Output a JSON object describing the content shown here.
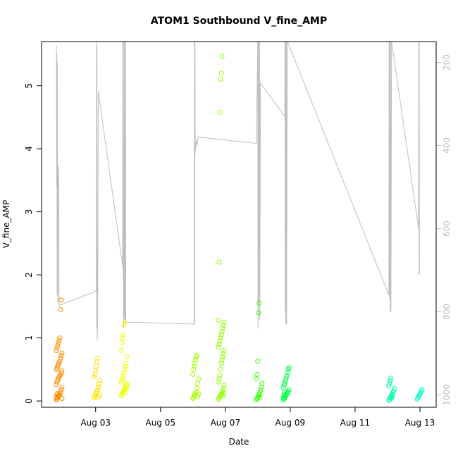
{
  "chart_data": {
    "type": "scatter",
    "title": "ATOM1 Southbound V_fine_AMP",
    "xlabel": "Date",
    "ylabel": "V_fine_AMP",
    "xlim": [
      "2024-08-01T08:00",
      "2024-08-13T12:00"
    ],
    "ylim": [
      -0.1,
      5.7
    ],
    "x_ticks": [
      {
        "date": "2024-08-03",
        "label": "Aug 03"
      },
      {
        "date": "2024-08-05",
        "label": "Aug 05"
      },
      {
        "date": "2024-08-07",
        "label": "Aug 07"
      },
      {
        "date": "2024-08-09",
        "label": "Aug 09"
      },
      {
        "date": "2024-08-11",
        "label": "Aug 11"
      },
      {
        "date": "2024-08-13",
        "label": "Aug 13"
      }
    ],
    "y_ticks": [
      0,
      1,
      2,
      3,
      4,
      5
    ],
    "y2_ticks": [
      200,
      400,
      600,
      800,
      1000
    ],
    "y2lim": [
      1030,
      150
    ],
    "y2_color": "#bebebe",
    "grid": false,
    "point_series": [
      {
        "x": "2024-08-01T21:00",
        "color": "#ff8c00",
        "y": [
          0.02,
          0.03,
          0.05,
          0.07,
          0.09,
          0.11,
          0.14,
          0.18,
          0.22,
          0.26,
          0.3,
          0.33,
          0.36,
          0.38,
          0.4,
          0.42,
          0.45,
          0.48,
          0.5,
          0.52,
          0.55,
          0.58,
          0.6,
          0.63,
          0.68,
          0.72,
          0.76,
          0.8,
          0.84,
          0.88,
          0.92,
          0.96,
          1.0,
          1.45,
          1.6,
          0.04,
          0.06,
          0.1,
          0.12,
          0.08
        ]
      },
      {
        "x": "2024-08-03T01:00",
        "color": "#ffe000",
        "y": [
          0.05,
          0.07,
          0.09,
          0.12,
          0.15,
          0.18,
          0.22,
          0.27,
          0.32,
          0.38,
          0.42,
          0.48,
          0.55,
          0.62,
          0.68,
          0.06,
          0.1
        ]
      },
      {
        "x": "2024-08-03T21:00",
        "color": "#eeff00",
        "y": [
          0.08,
          0.1,
          0.12,
          0.15,
          0.18,
          0.2,
          0.22,
          0.25,
          0.28,
          0.3,
          0.33,
          0.36,
          0.4,
          0.45,
          0.5,
          0.55,
          0.6,
          0.7,
          0.8,
          0.92,
          1.0,
          1.05,
          1.2,
          1.25,
          0.14,
          0.19,
          0.24
        ]
      },
      {
        "x": "2024-08-06T02:00",
        "color": "#a6ff00",
        "y": [
          0.04,
          0.06,
          0.08,
          0.1,
          0.12,
          0.15,
          0.2,
          0.28,
          0.35,
          0.42,
          0.5,
          0.55,
          0.6,
          0.65,
          0.7,
          0.72,
          0.07,
          0.11
        ]
      },
      {
        "x": "2024-08-06T21:00",
        "color": "#8cff00",
        "y": [
          0.03,
          0.05,
          0.07,
          0.09,
          0.11,
          0.13,
          0.16,
          0.2,
          0.25,
          0.3,
          0.35,
          0.4,
          0.5,
          0.6,
          0.65,
          0.7,
          0.75,
          0.8,
          0.85,
          0.9,
          0.95,
          1.0,
          1.05,
          1.1,
          1.15,
          1.2,
          1.25,
          1.28,
          2.2,
          4.58,
          5.1,
          5.2,
          5.47,
          0.08,
          0.12
        ]
      },
      {
        "x": "2024-08-08T01:00",
        "color": "#33ff00",
        "y": [
          0.02,
          0.04,
          0.06,
          0.08,
          0.1,
          0.13,
          0.17,
          0.22,
          0.28,
          0.35,
          0.42,
          0.63,
          1.4,
          1.55,
          0.05
        ]
      },
      {
        "x": "2024-08-08T21:00",
        "color": "#00ff44",
        "y": [
          0.02,
          0.04,
          0.05,
          0.07,
          0.09,
          0.11,
          0.13,
          0.15,
          0.18,
          0.21,
          0.25,
          0.28,
          0.32,
          0.36,
          0.4,
          0.45,
          0.5,
          0.53,
          0.06,
          0.1,
          0.14
        ]
      },
      {
        "x": "2024-08-12T03:00",
        "color": "#00ffaa",
        "y": [
          0.01,
          0.03,
          0.05,
          0.07,
          0.09,
          0.11,
          0.13,
          0.16,
          0.2,
          0.24,
          0.28,
          0.32,
          0.36,
          0.04,
          0.08
        ]
      },
      {
        "x": "2024-08-13T00:00",
        "color": "#00ffcc",
        "y": [
          0.03,
          0.05,
          0.07,
          0.09,
          0.11,
          0.13,
          0.16,
          0.18
        ]
      }
    ],
    "secondary_line": {
      "color": "#bebebe",
      "points": [
        [
          "2024-08-01T19:00",
          160
        ],
        [
          "2024-08-01T19:10",
          500
        ],
        [
          "2024-08-01T19:20",
          180
        ],
        [
          "2024-08-01T19:30",
          760
        ],
        [
          "2024-08-01T19:40",
          200
        ],
        [
          "2024-08-01T20:00",
          780
        ],
        [
          "2024-08-01T20:20",
          480
        ],
        [
          "2024-08-01T20:40",
          450
        ],
        [
          "2024-08-01T21:00",
          785
        ],
        [
          "2024-08-03T00:30",
          750
        ],
        [
          "2024-08-03T00:40",
          150
        ],
        [
          "2024-08-03T00:50",
          840
        ],
        [
          "2024-08-03T01:00",
          160
        ],
        [
          "2024-08-03T01:10",
          870
        ],
        [
          "2024-08-03T01:30",
          830
        ],
        [
          "2024-08-03T02:00",
          270
        ],
        [
          "2024-08-03T20:00",
          690
        ],
        [
          "2024-08-03T20:10",
          150
        ],
        [
          "2024-08-03T20:20",
          720
        ],
        [
          "2024-08-03T20:30",
          150
        ],
        [
          "2024-08-03T20:40",
          840
        ],
        [
          "2024-08-03T21:00",
          820
        ],
        [
          "2024-08-03T21:10",
          150
        ],
        [
          "2024-08-03T21:20",
          810
        ],
        [
          "2024-08-03T21:30",
          390
        ],
        [
          "2024-08-03T21:40",
          820
        ],
        [
          "2024-08-03T21:50",
          150
        ],
        [
          "2024-08-03T22:00",
          820
        ],
        [
          "2024-08-03T22:10",
          150
        ],
        [
          "2024-08-03T22:20",
          825
        ],
        [
          "2024-08-06T01:00",
          830
        ],
        [
          "2024-08-06T01:10",
          150
        ],
        [
          "2024-08-06T01:20",
          830
        ],
        [
          "2024-08-06T01:30",
          150
        ],
        [
          "2024-08-06T01:40",
          420
        ],
        [
          "2024-08-06T02:30",
          385
        ],
        [
          "2024-08-06T03:00",
          400
        ],
        [
          "2024-08-06T04:00",
          380
        ],
        [
          "2024-08-07T23:00",
          395
        ],
        [
          "2024-08-08T00:00",
          150
        ],
        [
          "2024-08-08T00:10",
          840
        ],
        [
          "2024-08-08T00:20",
          150
        ],
        [
          "2024-08-08T00:30",
          810
        ],
        [
          "2024-08-08T00:40",
          150
        ],
        [
          "2024-08-08T00:50",
          780
        ],
        [
          "2024-08-08T01:00",
          250
        ],
        [
          "2024-08-08T01:10",
          650
        ],
        [
          "2024-08-08T01:20",
          150
        ],
        [
          "2024-08-08T01:30",
          820
        ],
        [
          "2024-08-08T02:00",
          250
        ],
        [
          "2024-08-08T20:00",
          330
        ],
        [
          "2024-08-08T20:10",
          150
        ],
        [
          "2024-08-08T20:20",
          800
        ],
        [
          "2024-08-08T20:30",
          150
        ],
        [
          "2024-08-08T20:40",
          830
        ],
        [
          "2024-08-08T20:50",
          150
        ],
        [
          "2024-08-08T21:00",
          830
        ],
        [
          "2024-08-08T21:10",
          150
        ],
        [
          "2024-08-08T21:20",
          830
        ],
        [
          "2024-08-08T21:40",
          340
        ],
        [
          "2024-08-08T22:00",
          150
        ],
        [
          "2024-08-12T01:00",
          760
        ],
        [
          "2024-08-12T01:10",
          150
        ],
        [
          "2024-08-12T01:30",
          770
        ],
        [
          "2024-08-12T01:40",
          150
        ],
        [
          "2024-08-12T02:00",
          800
        ],
        [
          "2024-08-12T02:10",
          150
        ],
        [
          "2024-08-12T02:30",
          800
        ],
        [
          "2024-08-12T03:00",
          150
        ],
        [
          "2024-08-12T23:00",
          600
        ],
        [
          "2024-08-12T23:10",
          150
        ],
        [
          "2024-08-12T23:20",
          710
        ],
        [
          "2024-08-12T23:30",
          150
        ],
        [
          "2024-08-12T23:40",
          710
        ]
      ]
    }
  }
}
